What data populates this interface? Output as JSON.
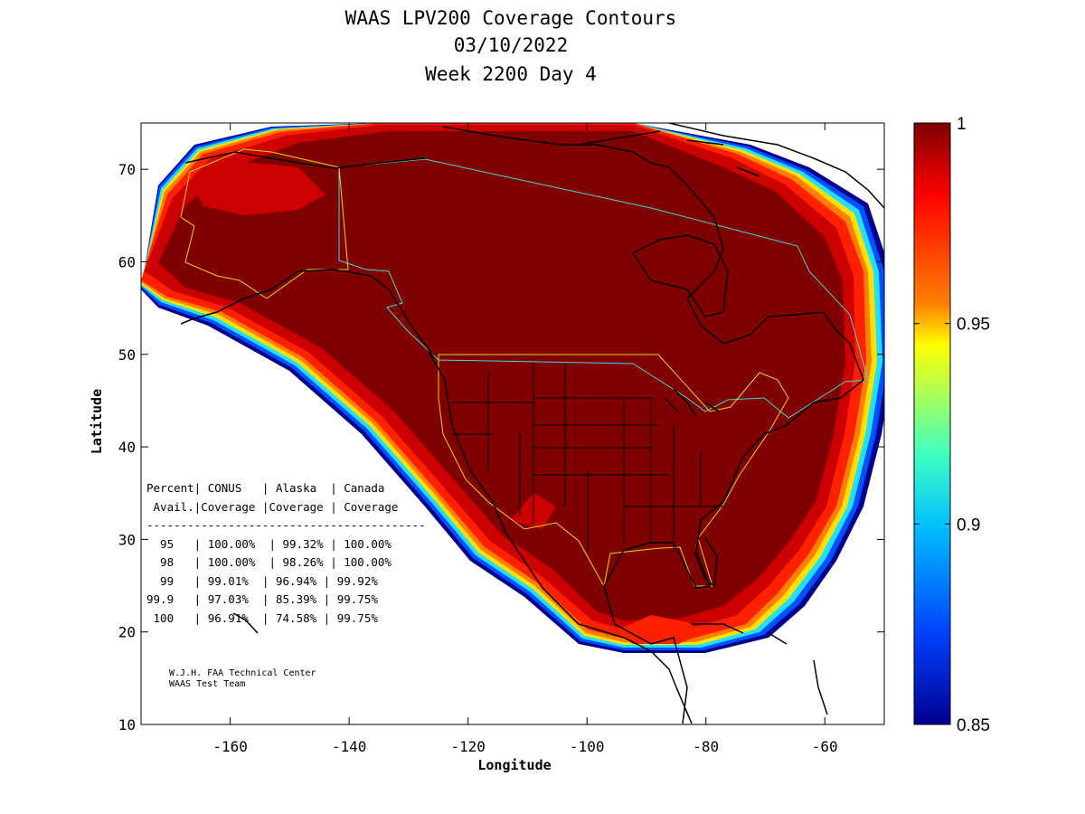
{
  "title": {
    "line1": "WAAS LPV200 Coverage Contours",
    "line2": "03/10/2022",
    "line3": "Week 2200 Day 4"
  },
  "axes": {
    "xlabel": "Longitude",
    "ylabel": "Latitude",
    "x_ticks": [
      "-160",
      "-140",
      "-120",
      "-100",
      "-80",
      "-60"
    ],
    "y_ticks": [
      "10",
      "20",
      "30",
      "40",
      "50",
      "60",
      "70"
    ],
    "xlim": [
      -175,
      -50
    ],
    "ylim": [
      10,
      75
    ]
  },
  "colorbar": {
    "labels": [
      "1",
      "0.95",
      "0.9",
      "0.85"
    ],
    "range": [
      0.85,
      1.0
    ],
    "colormap": "jet"
  },
  "stats_table": {
    "header1": "Percent| CONUS   | Alaska  | Canada",
    "header2": " Avail.|Coverage |Coverage | Coverage",
    "separator": "-----------------------------------------",
    "rows": [
      "  95   | 100.00%  | 99.32% | 100.00%",
      "  98   | 100.00%  | 98.26% | 100.00%",
      "  99   | 99.01%  | 96.94% | 99.92%",
      "99.9   | 97.03%  | 85.39% | 99.75%",
      " 100   | 96.91%  | 74.58% | 99.75%"
    ]
  },
  "credit": {
    "line1": "W.J.H. FAA Technical Center",
    "line2": "WAAS Test Team"
  },
  "colors": {
    "dark_red": "#800000",
    "red": "#cc0000",
    "bright_red": "#ff2000",
    "orange": "#ff8000",
    "yellow": "#ffe000",
    "cyan": "#20e0ff",
    "blue": "#0040ff",
    "navy": "#00008f",
    "conus_boundary": "#e8d800",
    "canada_boundary": "#40d8e0"
  }
}
